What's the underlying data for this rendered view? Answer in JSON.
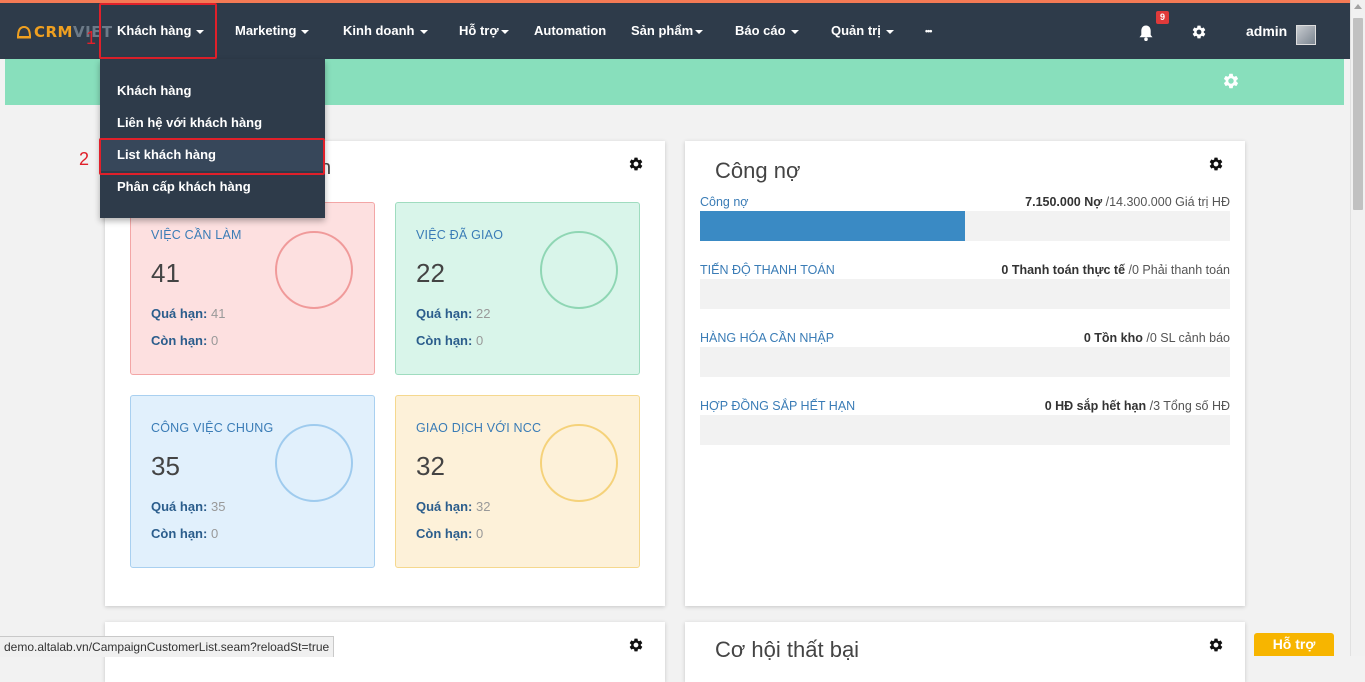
{
  "nav": {
    "logo_text_strong": "CRM",
    "logo_text_faded": "VIET",
    "items": [
      {
        "label": "Khách hàng",
        "caret": true
      },
      {
        "label": "Marketing",
        "caret": true
      },
      {
        "label": "Kinh doanh",
        "caret": true
      },
      {
        "label": "Hỗ trợ",
        "caret": true
      },
      {
        "label": "Automation",
        "caret": false
      },
      {
        "label": "Sản phẩm",
        "caret": true
      },
      {
        "label": "Báo cáo",
        "caret": true
      },
      {
        "label": "Quản trị",
        "caret": true
      },
      {
        "label": "•••",
        "caret": false
      }
    ],
    "notification_count": "9",
    "user_name": "admin"
  },
  "annotations": {
    "step1": "1",
    "step2": "2"
  },
  "dropdown": {
    "items": [
      {
        "label": "Khách hàng"
      },
      {
        "label": "Liên hệ với khách hàng"
      },
      {
        "label": "List khách hàng"
      },
      {
        "label": "Phân cấp khách hàng"
      }
    ],
    "highlighted_index": 2
  },
  "task_panel": {
    "title_fragment": "n",
    "cards": [
      {
        "title": "VIỆC CẦN LÀM",
        "count": "41",
        "overdue_label": "Quá hạn:",
        "overdue_value": "41",
        "remaining_label": "Còn hạn:",
        "remaining_value": "0",
        "bg": "#fde0e0",
        "border": "#f3a6a6",
        "ring": "#f09a9a"
      },
      {
        "title": "VIỆC ĐÃ GIAO",
        "count": "22",
        "overdue_label": "Quá hạn:",
        "overdue_value": "22",
        "remaining_label": "Còn hạn:",
        "remaining_value": "0",
        "bg": "#d9f5ea",
        "border": "#9fdcbf",
        "ring": "#8fd6b4"
      },
      {
        "title": "CÔNG VIỆC CHUNG",
        "count": "35",
        "overdue_label": "Quá hạn:",
        "overdue_value": "35",
        "remaining_label": "Còn hạn:",
        "remaining_value": "0",
        "bg": "#e1f0fc",
        "border": "#a9d0f0",
        "ring": "#9fcbee"
      },
      {
        "title": "GIAO DỊCH VỚI NCC",
        "count": "32",
        "overdue_label": "Quá hạn:",
        "overdue_value": "32",
        "remaining_label": "Còn hạn:",
        "remaining_value": "0",
        "bg": "#fdf1d9",
        "border": "#f5d88e",
        "ring": "#f5d27a"
      }
    ]
  },
  "debt_panel": {
    "title": "Công nợ",
    "rows": [
      {
        "label": "Công nợ",
        "value_strong": "7.150.000 Nợ",
        "value_rest": " /14.300.000 Giá trị HĐ",
        "progress": 0.5
      },
      {
        "label": "TIẾN ĐỘ THANH TOÁN",
        "value_strong": "0 Thanh toán thực tế",
        "value_rest": " /0 Phải thanh toán",
        "progress": 0
      },
      {
        "label": "HÀNG HÓA CẦN NHẬP",
        "value_strong": "0 Tồn kho",
        "value_rest": " /0 SL cảnh báo",
        "progress": 0
      },
      {
        "label": "HỢP ĐỒNG SẮP HẾT HẠN",
        "value_strong": "0 HĐ sắp hết hạn",
        "value_rest": " /3 Tổng số HĐ",
        "progress": 0
      }
    ]
  },
  "lower_right_panel": {
    "title": "Cơ hội thất bại"
  },
  "status_bar": {
    "url": "demo.altalab.vn/CampaignCustomerList.seam?reloadSt=true"
  },
  "help_button": {
    "label": "Hỗ trợ"
  },
  "colors": {
    "navbar": "#2e3b4a",
    "accent_orange": "#f47a55",
    "green_bar": "#88dfbc",
    "progress": "#3a8ac4",
    "highlight_red": "#e0202a",
    "help_yellow": "#f7b500"
  }
}
